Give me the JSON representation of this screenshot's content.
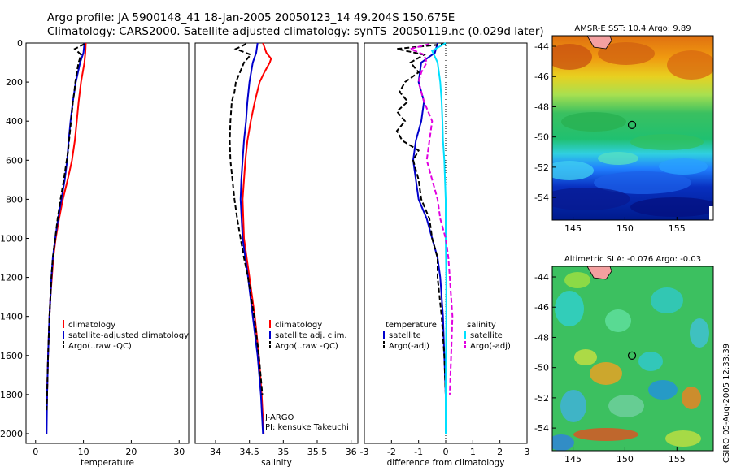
{
  "header": {
    "line1": "Argo profile: JA 5900148_41 18-Jan-2005 20050123_14 49.204S 150.675E",
    "line2": "Climatology: CARS2000. Satellite-adjusted climatology: synTS_20050119.nc (0.029d later)"
  },
  "chart_data": [
    {
      "type": "line",
      "xlabel": "temperature",
      "ylabel": "",
      "xlim": [
        -2,
        32
      ],
      "ylim": [
        2050,
        0
      ],
      "xticks": [
        0,
        10,
        20,
        30
      ],
      "yticks": [
        0,
        200,
        400,
        600,
        800,
        1000,
        1200,
        1400,
        1600,
        1800,
        2000
      ],
      "legend": [
        "climatology",
        "satellite-adjusted climatology",
        "Argo(..raw -QC)"
      ],
      "legend_position": "lower-right",
      "series": [
        {
          "name": "climatology",
          "color": "#ff0000",
          "style": "solid",
          "depth": [
            0,
            50,
            100,
            200,
            300,
            400,
            500,
            600,
            700,
            800,
            900,
            1000,
            1100,
            1200,
            1300,
            1400,
            1600,
            1800,
            1900
          ],
          "values": [
            10.5,
            10.4,
            10.2,
            9.5,
            9.0,
            8.6,
            8.2,
            7.6,
            6.7,
            5.7,
            4.9,
            4.2,
            3.7,
            3.4,
            3.1,
            2.9,
            2.6,
            2.4,
            2.3
          ]
        },
        {
          "name": "satellite-adjusted climatology",
          "color": "#0000cc",
          "style": "solid",
          "depth": [
            0,
            50,
            100,
            200,
            300,
            400,
            500,
            600,
            700,
            800,
            900,
            1000,
            1100,
            1200,
            1400,
            1600,
            1800,
            2000
          ],
          "values": [
            10.2,
            10.0,
            9.3,
            8.4,
            7.8,
            7.3,
            6.9,
            6.6,
            6.1,
            5.4,
            4.7,
            4.1,
            3.6,
            3.3,
            2.9,
            2.6,
            2.4,
            2.3
          ]
        },
        {
          "name": "Argo(..raw -QC)",
          "color": "#000000",
          "style": "dashed",
          "depth": [
            5,
            30,
            60,
            100,
            150,
            200,
            250,
            300,
            350,
            400,
            450,
            500,
            550,
            600,
            700,
            800,
            900,
            1000,
            1100,
            1200,
            1400,
            1600,
            1800,
            1880
          ],
          "values": [
            10.2,
            8.2,
            9.5,
            9.0,
            8.6,
            8.3,
            8.1,
            7.8,
            7.6,
            7.4,
            7.2,
            7.0,
            6.8,
            6.5,
            5.9,
            5.2,
            4.6,
            4.1,
            3.6,
            3.3,
            2.9,
            2.6,
            2.4,
            2.3
          ]
        }
      ]
    },
    {
      "type": "line",
      "xlabel": "salinity",
      "ylabel": "",
      "xlim": [
        33.7,
        36.1
      ],
      "ylim": [
        2050,
        0
      ],
      "xticks": [
        34,
        34.5,
        35,
        35.5,
        36
      ],
      "legend": [
        "climatology",
        "satellite adj. clim.",
        "Argo(..raw -QC)"
      ],
      "legend_position": "lower-right",
      "annotation": [
        "J-ARGO",
        "PI: kensuke Takeuchi"
      ],
      "series": [
        {
          "name": "climatology",
          "color": "#ff0000",
          "style": "solid",
          "depth": [
            0,
            50,
            80,
            100,
            150,
            200,
            300,
            400,
            500,
            600,
            800,
            1000,
            1200,
            1400,
            1600,
            1800,
            2000
          ],
          "values": [
            34.7,
            34.75,
            34.82,
            34.8,
            34.72,
            34.65,
            34.58,
            34.52,
            34.47,
            34.44,
            34.4,
            34.42,
            34.5,
            34.58,
            34.64,
            34.68,
            34.71
          ]
        },
        {
          "name": "satellite adj. clim.",
          "color": "#0000cc",
          "style": "solid",
          "depth": [
            0,
            50,
            100,
            200,
            300,
            400,
            500,
            600,
            700,
            800,
            1000,
            1200,
            1400,
            1600,
            1800,
            2000
          ],
          "values": [
            34.62,
            34.6,
            34.55,
            34.5,
            34.47,
            34.45,
            34.42,
            34.4,
            34.38,
            34.37,
            34.4,
            34.48,
            34.55,
            34.62,
            34.67,
            34.7
          ]
        },
        {
          "name": "Argo(..raw -QC)",
          "color": "#000000",
          "style": "dashed",
          "depth": [
            5,
            30,
            60,
            100,
            150,
            200,
            250,
            300,
            400,
            500,
            600,
            700,
            800,
            900,
            1000,
            1100,
            1200,
            1400,
            1600,
            1800
          ],
          "values": [
            34.45,
            34.3,
            34.52,
            34.42,
            34.36,
            34.3,
            34.28,
            34.24,
            34.22,
            34.21,
            34.22,
            34.25,
            34.28,
            34.32,
            34.37,
            34.42,
            34.48,
            34.57,
            34.64,
            34.69
          ]
        }
      ]
    },
    {
      "type": "line",
      "xlabel": "difference from climatology",
      "ylabel": "",
      "xlim": [
        -3,
        3
      ],
      "ylim": [
        2050,
        0
      ],
      "xticks": [
        -3,
        -2,
        -1,
        0,
        1,
        2,
        3
      ],
      "legend": [
        "temperature",
        "satellite",
        "Argo(-adj)",
        "salinity",
        "satellite",
        "Argo(-adj)"
      ],
      "legend_position": "lower-center",
      "series": [
        {
          "name": "temperature satellite",
          "color": "#0000cc",
          "style": "solid",
          "depth": [
            0,
            50,
            100,
            150,
            200,
            300,
            400,
            500,
            600,
            700,
            800,
            900,
            1000,
            1100,
            1200,
            1400,
            1600,
            1800,
            2000
          ],
          "values": [
            -0.3,
            -0.4,
            -0.9,
            -0.95,
            -1.0,
            -0.8,
            -0.9,
            -1.1,
            -1.2,
            -1.1,
            -1.0,
            -0.7,
            -0.5,
            -0.3,
            -0.2,
            -0.1,
            -0.05,
            0,
            0
          ]
        },
        {
          "name": "temperature Argo(-adj)",
          "color": "#000000",
          "style": "dashed",
          "depth": [
            5,
            30,
            60,
            100,
            150,
            200,
            250,
            300,
            350,
            400,
            450,
            500,
            550,
            600,
            700,
            800,
            900,
            1000,
            1100,
            1200,
            1400,
            1600,
            1800
          ],
          "values": [
            0,
            -1.8,
            -0.8,
            -1.3,
            -1.0,
            -1.5,
            -1.7,
            -1.4,
            -1.8,
            -1.5,
            -1.8,
            -1.6,
            -1.0,
            -1.2,
            -1.0,
            -0.9,
            -0.6,
            -0.5,
            -0.3,
            -0.3,
            -0.15,
            -0.05,
            0
          ]
        },
        {
          "name": "salinity satellite",
          "color": "#00e0ff",
          "style": "solid",
          "depth": [
            0,
            40,
            100,
            200,
            300,
            400,
            500,
            600,
            800,
            1000,
            1200,
            1400,
            1600,
            1800,
            2000
          ],
          "values": [
            0,
            -0.5,
            -0.3,
            -0.2,
            -0.15,
            -0.12,
            -0.1,
            -0.05,
            0,
            0,
            0.02,
            0.02,
            0.01,
            0,
            0
          ]
        },
        {
          "name": "salinity Argo(-adj)",
          "color": "#e000e0",
          "style": "dashed",
          "depth": [
            5,
            30,
            60,
            100,
            150,
            200,
            300,
            400,
            500,
            600,
            700,
            800,
            900,
            1000,
            1100,
            1200,
            1400,
            1600,
            1800
          ],
          "values": [
            -0.6,
            -1.3,
            -0.8,
            -0.7,
            -0.9,
            -1.0,
            -0.8,
            -0.5,
            -0.6,
            -0.7,
            -0.5,
            -0.3,
            -0.2,
            0.0,
            0.1,
            0.15,
            0.25,
            0.2,
            0.15
          ]
        }
      ]
    },
    {
      "type": "heatmap",
      "title": "AMSR-E SST: 10.4 Argo: 9.89",
      "xticks": [
        145,
        150,
        155
      ],
      "yticks": [
        -44,
        -46,
        -48,
        -50,
        -52,
        -54
      ],
      "xlim": [
        143,
        158.5
      ],
      "ylim": [
        -55.5,
        -43.3
      ],
      "marker": [
        150.675,
        -49.204
      ]
    },
    {
      "type": "heatmap",
      "title": "Altimetric SLA: -0.076 Argo: -0.03",
      "xticks": [
        145,
        150,
        155
      ],
      "yticks": [
        -44,
        -46,
        -48,
        -50,
        -52,
        -54
      ],
      "xlim": [
        143,
        158.5
      ],
      "ylim": [
        -55.5,
        -43.3
      ],
      "marker": [
        150.675,
        -49.204
      ]
    }
  ],
  "footer": {
    "stamp": "CSIRO 05-Aug-2005 12:33:39"
  }
}
